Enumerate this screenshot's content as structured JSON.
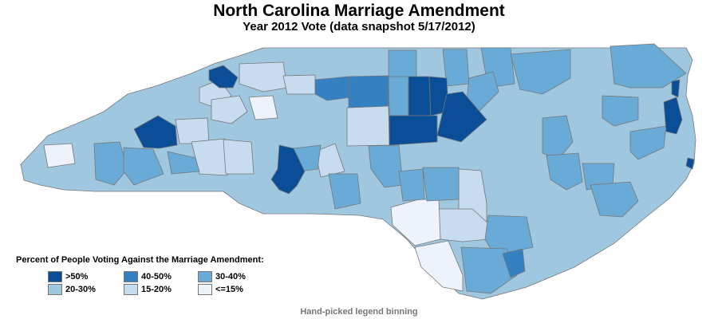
{
  "title": "North Carolina Marriage Amendment",
  "subtitle": "Year 2012 Vote (data snapshot 5/17/2012)",
  "legend": {
    "title": "Percent of People Voting Against the Marriage Amendment:",
    "bins": [
      {
        "label": ">50%",
        "color": "#0a4e97"
      },
      {
        "label": "40-50%",
        "color": "#3580c0"
      },
      {
        "label": "30-40%",
        "color": "#6aaad6"
      },
      {
        "label": "20-30%",
        "color": "#9fc7e0"
      },
      {
        "label": "15-20%",
        "color": "#c7dcef"
      },
      {
        "label": "<=15%",
        "color": "#eef2fb"
      }
    ]
  },
  "footnote": "Hand-picked legend binning"
}
